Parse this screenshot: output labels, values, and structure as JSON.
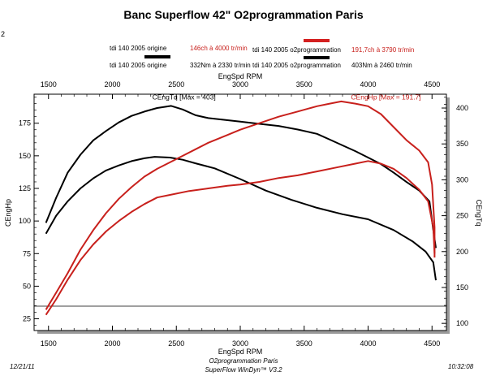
{
  "title": "Banc Superflow 42\" O2programmation Paris",
  "corner_mark": "2",
  "legend": [
    {
      "label": "tdi 140 2005 origine",
      "value": "146ch à 4000 tr/min",
      "value_color": "#c8201c",
      "swatch": "#000000",
      "swatch_name": "black-line"
    },
    {
      "label": "tdi 140 2005 o2programmation",
      "value": "191,7ch à 3790 tr/min",
      "value_color": "#c8201c",
      "swatch": "#d42020",
      "swatch_name": "red-line"
    },
    {
      "label": "tdi 140 2005 origine",
      "value": "332Nm à 2330 tr/min",
      "value_color": "#000000",
      "swatch": "#000000",
      "swatch_name": "black-line"
    },
    {
      "label": "tdi 140 2005 o2programmation",
      "value": "403Nm à 2460 tr/min",
      "value_color": "#000000",
      "swatch": "#000000",
      "swatch_name": "black-line"
    }
  ],
  "footer": {
    "date": "12/21/11",
    "time": "10:32:08",
    "line1": "O2programmation Paris",
    "line2": "SuperFlow WinDyn™ V3.2"
  },
  "chart_data": {
    "type": "line",
    "xlabel": "EngSpd RPM",
    "ylabel_left": "CEngHp",
    "ylabel_right": "CEngTq",
    "xlim": [
      1400,
      4600
    ],
    "ylim_left": [
      16,
      196
    ],
    "ylim_right": [
      90,
      417
    ],
    "x_ticks": [
      1500,
      2000,
      2500,
      3000,
      3500,
      4000,
      4500
    ],
    "y_left_ticks": [
      25,
      50,
      75,
      100,
      125,
      150,
      175
    ],
    "y_right_ticks": [
      100,
      150,
      200,
      250,
      300,
      350,
      400
    ],
    "annotations": [
      {
        "text": "CEngTq [Max = 403]",
        "color": "#000000",
        "at_rpm": 2560,
        "at_value": 190
      },
      {
        "text": "CEngHp [Max = 191.7]",
        "color": "#c8201c",
        "at_rpm": 4140,
        "at_value": 190
      }
    ],
    "series": [
      {
        "name": "o2programmation torque (Nm)",
        "axis": "right",
        "color": "#000000",
        "x": [
          1480,
          1560,
          1650,
          1750,
          1850,
          1950,
          2050,
          2150,
          2250,
          2350,
          2460,
          2550,
          2650,
          2750,
          2900,
          3000,
          3150,
          3300,
          3450,
          3600,
          3700,
          3800,
          3900,
          4000,
          4100,
          4200,
          4300,
          4400,
          4480,
          4510,
          4530
        ],
        "y": [
          240,
          275,
          310,
          335,
          355,
          368,
          380,
          389,
          395,
          400,
          403,
          398,
          390,
          386,
          383,
          381,
          378,
          375,
          370,
          364,
          356,
          348,
          340,
          331,
          322,
          310,
          297,
          285,
          270,
          230,
          205
        ]
      },
      {
        "name": "origine torque (Nm)",
        "axis": "right",
        "color": "#000000",
        "x": [
          1480,
          1560,
          1650,
          1750,
          1850,
          1950,
          2050,
          2150,
          2250,
          2330,
          2450,
          2550,
          2650,
          2800,
          3000,
          3200,
          3400,
          3600,
          3800,
          4000,
          4200,
          4350,
          4450,
          4510,
          4530
        ],
        "y": [
          225,
          250,
          270,
          288,
          302,
          313,
          320,
          326,
          330,
          332,
          331,
          328,
          323,
          316,
          301,
          285,
          272,
          261,
          252,
          245,
          230,
          214,
          200,
          185,
          160
        ]
      },
      {
        "name": "o2programmation power (ch)",
        "axis": "left",
        "color": "#c8201c",
        "x": [
          1480,
          1560,
          1650,
          1750,
          1850,
          1950,
          2050,
          2150,
          2250,
          2350,
          2450,
          2550,
          2650,
          2750,
          2900,
          3000,
          3150,
          3300,
          3450,
          3600,
          3700,
          3790,
          3900,
          4000,
          4100,
          4200,
          4300,
          4400,
          4470,
          4500,
          4520,
          4520
        ],
        "y": [
          32,
          45,
          60,
          78,
          93,
          106,
          117,
          126,
          134,
          140,
          145,
          150,
          155,
          160,
          166,
          170,
          175,
          180,
          184,
          188,
          190,
          191.7,
          190,
          188,
          182,
          172,
          162,
          154,
          145,
          128,
          95,
          72
        ]
      },
      {
        "name": "origine power (ch)",
        "axis": "left",
        "color": "#c8201c",
        "x": [
          1480,
          1560,
          1650,
          1750,
          1850,
          1950,
          2050,
          2150,
          2250,
          2350,
          2450,
          2600,
          2750,
          2900,
          3000,
          3150,
          3300,
          3450,
          3600,
          3750,
          3900,
          4000,
          4100,
          4200,
          4300,
          4400,
          4470,
          4510,
          4520
        ],
        "y": [
          28,
          40,
          55,
          70,
          82,
          92,
          100,
          107,
          113,
          118,
          120,
          123,
          125,
          127,
          128,
          130,
          133,
          135,
          138,
          141,
          144,
          146,
          144,
          140,
          133,
          124,
          115,
          95,
          75
        ]
      }
    ]
  }
}
